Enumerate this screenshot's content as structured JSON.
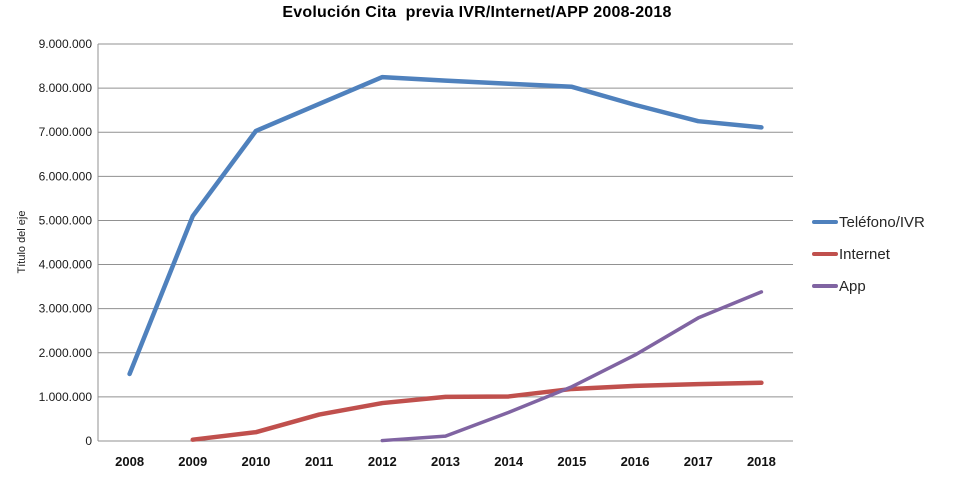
{
  "chart_data": {
    "type": "line",
    "title": "Evolución Cita  previa IVR/Internet/APP 2008-2018",
    "xlabel": "",
    "ylabel": "Título del eje",
    "categories": [
      "2008",
      "2009",
      "2010",
      "2011",
      "2012",
      "2013",
      "2014",
      "2015",
      "2016",
      "2017",
      "2018"
    ],
    "series": [
      {
        "name": "Teléfono/IVR",
        "color": "#4F81BD",
        "line_width": 4.5,
        "values": [
          1520000,
          5100000,
          7030000,
          7640000,
          8250000,
          8170000,
          8100000,
          8030000,
          7620000,
          7250000,
          7110000
        ]
      },
      {
        "name": "Internet",
        "color": "#C0504D",
        "line_width": 4.5,
        "values": [
          null,
          30000,
          200000,
          600000,
          860000,
          1000000,
          1010000,
          1180000,
          1250000,
          1290000,
          1320000
        ]
      },
      {
        "name": "App",
        "color": "#8064A2",
        "line_width": 3.5,
        "values": [
          null,
          null,
          null,
          null,
          10000,
          110000,
          650000,
          1230000,
          1950000,
          2790000,
          3380000
        ]
      }
    ],
    "ylim": [
      0,
      9000000
    ],
    "y_tick_step": 1000000,
    "y_tick_labels": [
      "0",
      "1.000.000",
      "2.000.000",
      "3.000.000",
      "4.000.000",
      "5.000.000",
      "6.000.000",
      "7.000.000",
      "8.000.000",
      "9.000.000"
    ],
    "grid": "horizontal",
    "legend_position": "right"
  },
  "style_colors": {
    "gridline": "#919191",
    "axis_line": "#919191",
    "background": "#ffffff"
  }
}
